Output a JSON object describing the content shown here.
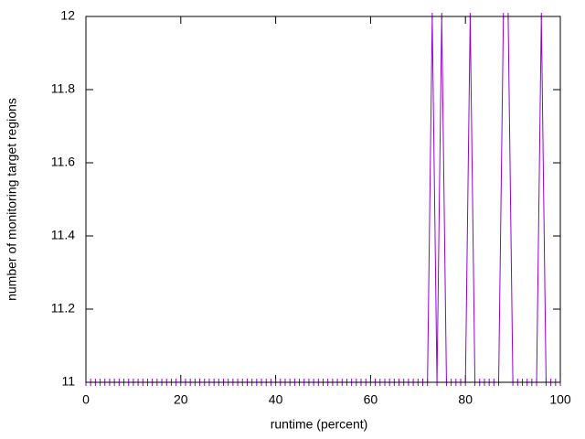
{
  "chart_data": {
    "type": "line",
    "x_label": "runtime (percent)",
    "y_label": "number of monitoring target regions",
    "x": [
      0,
      1,
      2,
      3,
      4,
      5,
      6,
      7,
      8,
      9,
      10,
      11,
      12,
      13,
      14,
      15,
      16,
      17,
      18,
      19,
      20,
      21,
      22,
      23,
      24,
      25,
      26,
      27,
      28,
      29,
      30,
      31,
      32,
      33,
      34,
      35,
      36,
      37,
      38,
      39,
      40,
      41,
      42,
      43,
      44,
      45,
      46,
      47,
      48,
      49,
      50,
      51,
      52,
      53,
      54,
      55,
      56,
      57,
      58,
      59,
      60,
      61,
      62,
      63,
      64,
      65,
      66,
      67,
      68,
      69,
      70,
      71,
      72,
      73,
      74,
      75,
      76,
      77,
      78,
      79,
      80,
      81,
      82,
      83,
      84,
      85,
      86,
      87,
      88,
      89,
      90,
      91,
      92,
      93,
      94,
      95,
      96,
      97,
      98,
      99,
      100
    ],
    "series": [
      {
        "color": "#9400d3",
        "values": [
          11,
          11,
          11,
          11,
          11,
          11,
          11,
          11,
          11,
          11,
          11,
          11,
          11,
          11,
          11,
          11,
          11,
          11,
          11,
          11,
          11,
          11,
          11,
          11,
          11,
          11,
          11,
          11,
          11,
          11,
          11,
          11,
          11,
          11,
          11,
          11,
          11,
          11,
          11,
          11,
          11,
          11,
          11,
          11,
          11,
          11,
          11,
          11,
          11,
          11,
          11,
          11,
          11,
          11,
          11,
          11,
          11,
          11,
          11,
          11,
          11,
          11,
          11,
          11,
          11,
          11,
          11,
          11,
          11,
          11,
          11,
          11,
          11,
          12,
          11,
          12,
          11,
          11,
          11,
          11,
          11,
          12,
          11,
          11,
          11,
          11,
          11,
          11,
          12,
          12,
          11,
          11,
          11,
          11,
          11,
          11,
          12,
          11,
          11,
          11,
          11
        ]
      }
    ],
    "xlim": [
      0,
      100
    ],
    "xticks": [
      0,
      20,
      40,
      60,
      80,
      100
    ],
    "ylim": [
      11,
      12
    ],
    "yticks": [
      11,
      11.2,
      11.4,
      11.6,
      11.8,
      12
    ]
  }
}
